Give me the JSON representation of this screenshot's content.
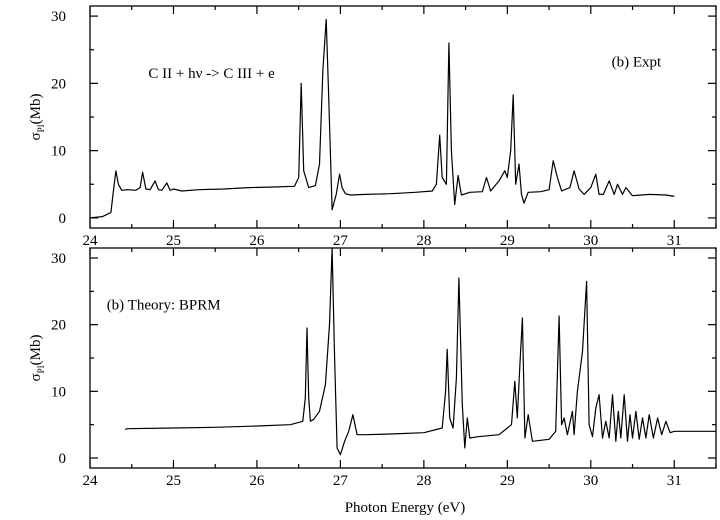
{
  "chart_data": [
    {
      "type": "line",
      "panel": "top",
      "title": "",
      "xlabel": "",
      "ylabel_main": "σ",
      "ylabel_sub": "PI",
      "ylabel_unit": "(Mb)",
      "xlim": [
        24,
        31.5
      ],
      "ylim": [
        -1.5,
        31.5
      ],
      "xticks": [
        24,
        25,
        26,
        27,
        28,
        29,
        30,
        31
      ],
      "yticks": [
        0,
        10,
        20,
        30
      ],
      "annotations": [
        {
          "text": "C II + hν -> C III + e",
          "x": 24.7,
          "y": 20.8
        },
        {
          "text": "(b) Expt",
          "x": 30.25,
          "y": 22.5
        }
      ],
      "series": [
        {
          "x": [
            24.0,
            24.15,
            24.25,
            24.28,
            24.31,
            24.34,
            24.38,
            24.45,
            24.55,
            24.6,
            24.63,
            24.67,
            24.72,
            24.78,
            24.82,
            24.86,
            24.92,
            24.96,
            25.0,
            25.1,
            25.3,
            25.6,
            25.9,
            26.2,
            26.45,
            26.5,
            26.53,
            26.56,
            26.62,
            26.7,
            26.75,
            26.79,
            26.83,
            26.86,
            26.9,
            26.95,
            26.99,
            27.02,
            27.06,
            27.12,
            27.3,
            27.6,
            27.9,
            28.1,
            28.15,
            28.19,
            28.22,
            28.27,
            28.3,
            28.33,
            28.37,
            28.41,
            28.45,
            28.55,
            28.7,
            28.75,
            28.8,
            28.9,
            28.97,
            29.0,
            29.04,
            29.07,
            29.1,
            29.14,
            29.17,
            29.2,
            29.25,
            29.4,
            29.5,
            29.55,
            29.6,
            29.65,
            29.75,
            29.8,
            29.86,
            29.92,
            30.0,
            30.06,
            30.1,
            30.15,
            30.22,
            30.28,
            30.32,
            30.38,
            30.42,
            30.5,
            30.7,
            30.9,
            31.0
          ],
          "y": [
            0.0,
            0.2,
            0.8,
            4.0,
            7.0,
            5.0,
            4.1,
            4.2,
            4.1,
            4.5,
            6.8,
            4.3,
            4.2,
            5.5,
            4.2,
            4.1,
            5.2,
            4.1,
            4.3,
            4.0,
            4.2,
            4.3,
            4.5,
            4.6,
            4.7,
            6.0,
            20.0,
            7.0,
            4.5,
            4.8,
            8.0,
            22.0,
            29.5,
            18.0,
            1.2,
            3.5,
            6.5,
            4.5,
            3.6,
            3.4,
            3.5,
            3.6,
            3.8,
            4.0,
            5.0,
            12.3,
            6.0,
            5.0,
            26.0,
            10.0,
            2.0,
            6.3,
            3.4,
            3.8,
            3.9,
            6.0,
            4.0,
            5.5,
            7.0,
            6.0,
            10.0,
            18.3,
            5.0,
            8.0,
            3.5,
            2.2,
            3.8,
            3.9,
            4.2,
            8.5,
            6.0,
            4.0,
            4.5,
            7.0,
            4.3,
            3.5,
            4.5,
            6.5,
            3.5,
            3.5,
            5.5,
            3.5,
            5.0,
            3.5,
            4.5,
            3.3,
            3.5,
            3.4,
            3.2
          ]
        }
      ]
    },
    {
      "type": "line",
      "panel": "bottom",
      "title": "",
      "xlabel": "Photon Energy (eV)",
      "ylabel_main": "σ",
      "ylabel_sub": "PI",
      "ylabel_unit": "(Mb)",
      "xlim": [
        24,
        31.5
      ],
      "ylim": [
        -1.5,
        31.5
      ],
      "xticks": [
        24,
        25,
        26,
        27,
        28,
        29,
        30,
        31
      ],
      "yticks": [
        0,
        10,
        20,
        30
      ],
      "annotations": [
        {
          "text": "(b) Theory: BPRM",
          "x": 24.2,
          "y": 22.3
        }
      ],
      "series": [
        {
          "x": [
            24.42,
            24.45,
            25.0,
            25.5,
            26.0,
            26.4,
            26.55,
            26.58,
            26.6,
            26.62,
            26.64,
            26.68,
            26.75,
            26.82,
            26.87,
            26.9,
            26.93,
            26.96,
            27.0,
            27.05,
            27.1,
            27.15,
            27.2,
            27.3,
            27.6,
            28.0,
            28.22,
            28.26,
            28.28,
            28.31,
            28.35,
            28.39,
            28.42,
            28.46,
            28.49,
            28.52,
            28.55,
            28.65,
            28.9,
            29.05,
            29.09,
            29.12,
            29.15,
            29.18,
            29.21,
            29.25,
            29.3,
            29.5,
            29.58,
            29.62,
            29.65,
            29.68,
            29.72,
            29.78,
            29.8,
            29.84,
            29.9,
            29.95,
            29.98,
            30.02,
            30.06,
            30.1,
            30.14,
            30.18,
            30.22,
            30.26,
            30.3,
            30.33,
            30.36,
            30.4,
            30.44,
            30.47,
            30.5,
            30.54,
            30.58,
            30.62,
            30.66,
            30.7,
            30.75,
            30.8,
            30.85,
            30.9,
            30.95,
            31.0,
            31.5
          ],
          "y": [
            4.3,
            4.4,
            4.5,
            4.6,
            4.8,
            5.0,
            5.5,
            9.0,
            19.5,
            9.0,
            5.5,
            5.8,
            7.0,
            11.0,
            20.0,
            31.5,
            15.0,
            1.5,
            0.5,
            2.5,
            4.0,
            6.5,
            3.5,
            3.5,
            3.6,
            3.8,
            4.5,
            10.0,
            16.3,
            6.0,
            4.5,
            12.0,
            27.0,
            8.0,
            1.5,
            6.0,
            3.0,
            3.2,
            3.5,
            5.0,
            11.5,
            6.0,
            14.0,
            21.0,
            3.0,
            6.5,
            2.5,
            2.8,
            4.0,
            21.3,
            5.0,
            6.0,
            3.5,
            7.0,
            3.5,
            10.0,
            16.0,
            26.5,
            5.0,
            3.2,
            7.5,
            9.5,
            3.0,
            5.5,
            3.0,
            9.5,
            2.5,
            7.0,
            3.0,
            9.5,
            2.5,
            6.5,
            3.0,
            7.0,
            2.8,
            6.0,
            3.0,
            6.5,
            3.0,
            6.0,
            3.5,
            5.5,
            3.8,
            4.0,
            4.0
          ]
        }
      ]
    }
  ]
}
